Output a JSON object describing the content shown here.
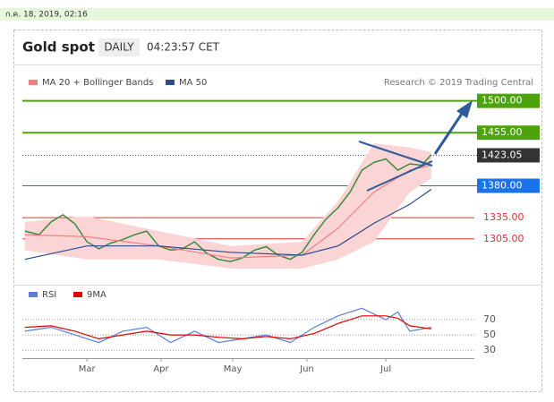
{
  "timestamp": "ก.ค. 18, 2019, 02:16",
  "chart_data": [
    {
      "type": "line",
      "title": "Gold spot",
      "period": "DAILY",
      "time": "04:23:57 CET",
      "source": "Research © 2019 Trading Central",
      "xlim": [
        33,
        222
      ],
      "ylim": [
        1263,
        1516
      ],
      "x": [
        34,
        40,
        45,
        50,
        55,
        60,
        65,
        70,
        75,
        80,
        85,
        90,
        95,
        100,
        105,
        110,
        115,
        120,
        125,
        130,
        135,
        140,
        145,
        150,
        155,
        160,
        165,
        170,
        175,
        180,
        185,
        190,
        195,
        200,
        204
      ],
      "values": [
        1316,
        1311,
        1329,
        1339,
        1326,
        1301,
        1291,
        1299,
        1304,
        1311,
        1316,
        1295,
        1289,
        1291,
        1301,
        1285,
        1276,
        1273,
        1278,
        1289,
        1294,
        1282,
        1276,
        1286,
        1311,
        1333,
        1349,
        1371,
        1402,
        1413,
        1418,
        1402,
        1411,
        1409,
        1424
      ],
      "color": "#3c8a3c",
      "series": [
        {
          "name": "MA 20 + Bollinger Bands",
          "color": "#f08080",
          "band_color": "#fbd5d5",
          "x": [
            34,
            60,
            90,
            120,
            150,
            165,
            180,
            195,
            204
          ],
          "values": [
            1311,
            1308,
            1295,
            1278,
            1282,
            1320,
            1371,
            1402,
            1409
          ],
          "upper": [
            1329,
            1337,
            1316,
            1295,
            1301,
            1358,
            1440,
            1434,
            1428
          ],
          "lower": [
            1289,
            1276,
            1276,
            1263,
            1263,
            1276,
            1301,
            1371,
            1390
          ]
        },
        {
          "name": "MA 50",
          "color": "#2e4a8f",
          "x": [
            34,
            60,
            90,
            120,
            150,
            165,
            180,
            195,
            204
          ],
          "values": [
            1276,
            1295,
            1295,
            1286,
            1282,
            1295,
            1327,
            1354,
            1375
          ]
        }
      ],
      "levels": [
        {
          "value": 1500,
          "label": "1500.00",
          "color": "#4ca30d",
          "boxed": true,
          "style": "solid"
        },
        {
          "value": 1455,
          "label": "1455.00",
          "color": "#4ca30d",
          "boxed": true,
          "style": "solid"
        },
        {
          "value": 1423.05,
          "label": "1423.05",
          "color": "#333333",
          "boxed": true,
          "style": "dotted"
        },
        {
          "value": 1380,
          "label": "1380.00",
          "color": "#1a73e8",
          "boxed": true,
          "style": "solid"
        },
        {
          "value": 1335,
          "label": "1335.00",
          "color": "#e03030",
          "boxed": false,
          "style": "solid"
        },
        {
          "value": 1305,
          "label": "1305.00",
          "color": "#e03030",
          "boxed": false,
          "style": "solid"
        }
      ]
    },
    {
      "type": "line",
      "xlim": [
        33,
        222
      ],
      "ylim": [
        22,
        90
      ],
      "yticks": [
        30,
        50,
        70
      ],
      "grid": true,
      "xticks": [
        {
          "value": 60,
          "label": "Mar"
        },
        {
          "value": 91,
          "label": "Apr"
        },
        {
          "value": 121,
          "label": "May"
        },
        {
          "value": 152,
          "label": "Jun"
        },
        {
          "value": 185,
          "label": "Jul"
        }
      ],
      "series": [
        {
          "name": "RSI",
          "color": "#5b7fd6",
          "x": [
            34,
            45,
            55,
            65,
            75,
            85,
            95,
            105,
            115,
            125,
            135,
            145,
            155,
            165,
            175,
            185,
            190,
            195,
            204
          ],
          "values": [
            55,
            60,
            50,
            40,
            55,
            60,
            40,
            55,
            40,
            45,
            50,
            40,
            60,
            75,
            85,
            70,
            80,
            55,
            60
          ]
        },
        {
          "name": "9MA",
          "color": "#e00000",
          "x": [
            34,
            45,
            55,
            65,
            75,
            85,
            95,
            105,
            115,
            125,
            135,
            145,
            155,
            165,
            175,
            185,
            190,
            195,
            204
          ],
          "values": [
            60,
            62,
            55,
            45,
            50,
            55,
            50,
            50,
            47,
            45,
            48,
            45,
            52,
            65,
            75,
            75,
            72,
            62,
            58
          ]
        }
      ]
    }
  ]
}
